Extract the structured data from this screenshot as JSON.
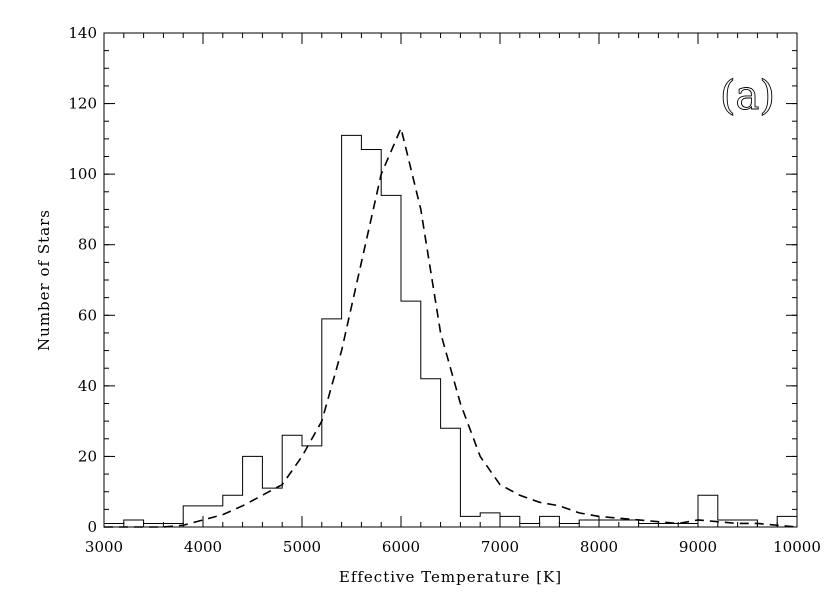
{
  "chart_data": {
    "type": "histogram",
    "panel_label": "(a)",
    "xlabel": "Effective Temperature  [K]",
    "ylabel": "Number of Stars",
    "xlim": [
      3000,
      10000
    ],
    "ylim": [
      0,
      140
    ],
    "x_ticks": [
      "3000",
      "4000",
      "5000",
      "6000",
      "7000",
      "8000",
      "9000",
      "10000"
    ],
    "y_ticks": [
      "0",
      "20",
      "40",
      "60",
      "80",
      "100",
      "120",
      "140"
    ],
    "x_minor_step": 200,
    "y_minor_step": 5,
    "histogram": {
      "style": "solid step",
      "bin_width": 200,
      "bin_starts": [
        3000,
        3200,
        3400,
        3600,
        3800,
        4000,
        4200,
        4400,
        4600,
        4800,
        5000,
        5200,
        5400,
        5600,
        5800,
        6000,
        6200,
        6400,
        6600,
        6800,
        7000,
        7200,
        7400,
        7600,
        7800,
        8000,
        8200,
        8400,
        8600,
        8800,
        9000,
        9200,
        9400,
        9600,
        9800
      ],
      "counts": [
        1,
        2,
        1,
        1,
        6,
        6,
        9,
        20,
        11,
        26,
        23,
        59,
        111,
        107,
        94,
        64,
        42,
        28,
        3,
        4,
        3,
        1,
        3,
        1,
        2,
        2,
        2,
        1,
        1,
        1,
        9,
        2,
        2,
        0,
        3
      ]
    },
    "model_curve": {
      "style": "dashed",
      "x": [
        3000,
        3600,
        3800,
        4000,
        4200,
        4400,
        4600,
        4800,
        5000,
        5200,
        5400,
        5600,
        5800,
        6000,
        6200,
        6400,
        6600,
        6800,
        7000,
        7200,
        7400,
        7600,
        7800,
        8000,
        8200,
        8400,
        8600,
        8800,
        9000,
        9200,
        9400,
        9600,
        9800,
        10000
      ],
      "y": [
        0,
        0,
        0.5,
        2,
        3.5,
        6,
        9,
        12,
        20,
        30,
        50,
        75,
        100,
        113,
        90,
        55,
        35,
        20,
        12,
        9,
        7,
        6,
        4,
        3,
        2.5,
        2,
        1.5,
        1,
        2,
        1.5,
        1,
        1,
        0.5,
        0
      ]
    }
  }
}
